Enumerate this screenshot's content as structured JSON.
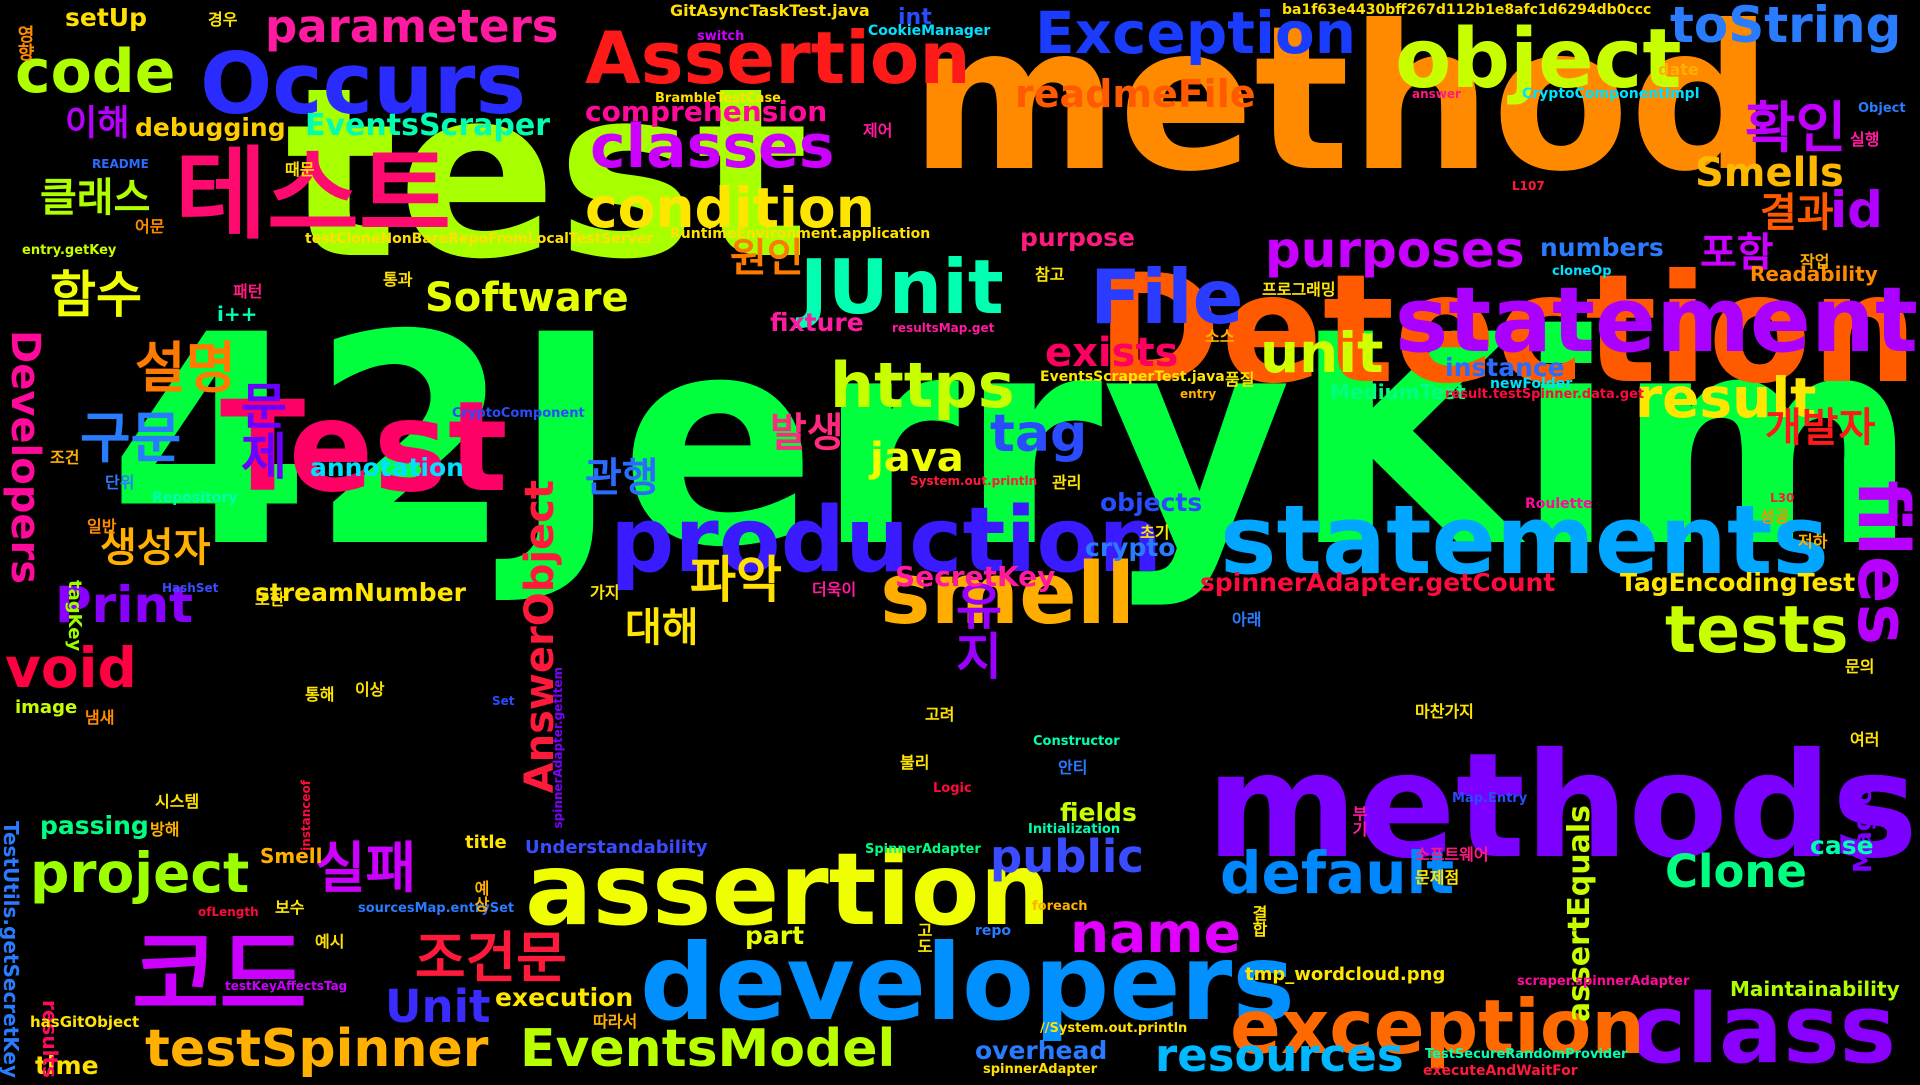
{
  "words": [
    {
      "t": "42JerryKim",
      "c": "#00ff3c"
    },
    {
      "t": "test",
      "c": "#a8ff00"
    },
    {
      "t": "method",
      "c": "#ff8a00"
    },
    {
      "t": "Detection",
      "c": "#ff5a00"
    },
    {
      "t": "methods",
      "c": "#7b00ff"
    },
    {
      "t": "Test",
      "c": "#ff0066"
    },
    {
      "t": "developers",
      "c": "#0090ff"
    },
    {
      "t": "statements",
      "c": "#00a6ff"
    },
    {
      "t": "production",
      "c": "#3a1bff"
    },
    {
      "t": "assertion",
      "c": "#f0ff00"
    },
    {
      "t": "Occurs",
      "c": "#2a2cff"
    },
    {
      "t": "테스트",
      "c": "#ff0a6e"
    },
    {
      "t": "object",
      "c": "#c8ff00"
    },
    {
      "t": "Assertion",
      "c": "#ff1a1a"
    },
    {
      "t": "statement",
      "c": "#a900ff"
    },
    {
      "t": "class",
      "c": "#8a00ff"
    },
    {
      "t": "코드",
      "c": "#cc00ff"
    },
    {
      "t": "exception",
      "c": "#ff6a00"
    },
    {
      "t": "smell",
      "c": "#ffae00"
    },
    {
      "t": "JUnit",
      "c": "#00ffb0"
    },
    {
      "t": "File",
      "c": "#2a3cff"
    },
    {
      "t": "code",
      "c": "#b0ff00"
    },
    {
      "t": "classes",
      "c": "#cc00ff"
    },
    {
      "t": "Exception",
      "c": "#1a3cff"
    },
    {
      "t": "toString",
      "c": "#2a7cff"
    },
    {
      "t": "condition",
      "c": "#ffe600"
    },
    {
      "t": "https",
      "c": "#c8ff00"
    },
    {
      "t": "EventsModel",
      "c": "#b8ff00"
    },
    {
      "t": "testSpinner",
      "c": "#ffb000"
    },
    {
      "t": "project",
      "c": "#9cff00"
    },
    {
      "t": "default",
      "c": "#0088ff"
    },
    {
      "t": "tests",
      "c": "#c8ff00"
    },
    {
      "t": "files",
      "c": "#b800ff"
    },
    {
      "t": "parameters",
      "c": "#ff1aa0"
    },
    {
      "t": "purposes",
      "c": "#c800ff"
    },
    {
      "t": "unit",
      "c": "#d0ff00"
    },
    {
      "t": "result",
      "c": "#ffe600"
    },
    {
      "t": "tag",
      "c": "#2a4cff"
    },
    {
      "t": "name",
      "c": "#e000ff"
    },
    {
      "t": "resources",
      "c": "#00b8ff"
    },
    {
      "t": "Clone",
      "c": "#00ff80"
    },
    {
      "t": "id",
      "c": "#b000ff"
    },
    {
      "t": "확인",
      "c": "#c000ff"
    },
    {
      "t": "Smells",
      "c": "#ffb800"
    },
    {
      "t": "readmeFile",
      "c": "#ff5a00"
    },
    {
      "t": "함수",
      "c": "#f0ff00"
    },
    {
      "t": "설명",
      "c": "#ff7a00"
    },
    {
      "t": "구문",
      "c": "#2a7cff"
    },
    {
      "t": "실패",
      "c": "#cc00ff"
    },
    {
      "t": "조건문",
      "c": "#ff1a3c"
    },
    {
      "t": "파악",
      "c": "#ffe000"
    },
    {
      "t": "void",
      "c": "#ff0040"
    },
    {
      "t": "Print",
      "c": "#8a00ff"
    },
    {
      "t": "Software",
      "c": "#e6ff00"
    },
    {
      "t": "public",
      "c": "#3a4cff"
    },
    {
      "t": "exists",
      "c": "#ff0060"
    },
    {
      "t": "java",
      "c": "#f0ff00"
    },
    {
      "t": "Unit",
      "c": "#3a2cff"
    },
    {
      "t": "생성자",
      "c": "#ffb000"
    },
    {
      "t": "Developers",
      "c": "#ff0a9a"
    },
    {
      "t": "AnswerObject",
      "c": "#ff1a3c"
    },
    {
      "t": "유지",
      "c": "#9a00ff"
    },
    {
      "t": "문제",
      "c": "#6a00ff"
    },
    {
      "t": "클래스",
      "c": "#b0ff00"
    },
    {
      "t": "원인",
      "c": "#ff7a00"
    },
    {
      "t": "포함",
      "c": "#cc00ff"
    },
    {
      "t": "결과",
      "c": "#ff5a00"
    },
    {
      "t": "개발자",
      "c": "#ff1a1a"
    },
    {
      "t": "발생",
      "c": "#ff2a80"
    },
    {
      "t": "관행",
      "c": "#2a6cff"
    },
    {
      "t": "대해",
      "c": "#ffe600"
    },
    {
      "t": "이해",
      "c": "#b800ff"
    },
    {
      "t": "debugging",
      "c": "#ffcc00"
    },
    {
      "t": "EventsScraper",
      "c": "#00ffb0"
    },
    {
      "t": "comprehension",
      "c": "#ff0a9a"
    },
    {
      "t": "setUp",
      "c": "#ffe000"
    },
    {
      "t": "annotation",
      "c": "#00e0ff"
    },
    {
      "t": "streamNumber",
      "c": "#ffe600"
    },
    {
      "t": "SecretKey",
      "c": "#ff1aa0"
    },
    {
      "t": "crypto",
      "c": "#2a7cff"
    },
    {
      "t": "objects",
      "c": "#2a4cff"
    },
    {
      "t": "spinnerAdapter.getCount",
      "c": "#ff0a3c"
    },
    {
      "t": "assertEquals",
      "c": "#c8ff00"
    },
    {
      "t": "TagEncodingTest",
      "c": "#ffe600"
    },
    {
      "t": "fixture",
      "c": "#ff1aa0"
    },
    {
      "t": "instance",
      "c": "#2a6cff"
    },
    {
      "t": "MediumTest",
      "c": "#00ff80"
    },
    {
      "t": "numbers",
      "c": "#2a7cff"
    },
    {
      "t": "purpose",
      "c": "#ff1a80"
    },
    {
      "t": "Readability",
      "c": "#ff8a00"
    },
    {
      "t": "fields",
      "c": "#c8ff00"
    },
    {
      "t": "overhead",
      "c": "#2a7cff"
    },
    {
      "t": "execution",
      "c": "#ffe600"
    },
    {
      "t": "part",
      "c": "#e6ff00"
    },
    {
      "t": "passing",
      "c": "#00ff80"
    },
    {
      "t": "Magic",
      "c": "#7b00ff"
    },
    {
      "t": "case",
      "c": "#00ffb0"
    },
    {
      "t": "Maintainability",
      "c": "#b0ff00"
    },
    {
      "t": "Understandability",
      "c": "#3a4cff"
    },
    {
      "t": "Smell",
      "c": "#ffb000"
    },
    {
      "t": "time",
      "c": "#ffe000"
    },
    {
      "t": "image",
      "c": "#c8ff00"
    },
    {
      "t": "title",
      "c": "#ffe600"
    },
    {
      "t": "results",
      "c": "#ff0a60"
    },
    {
      "t": "TestUtils.getSecretKey",
      "c": "#2a7cff"
    },
    {
      "t": "tagKey",
      "c": "#9cff00"
    },
    {
      "t": "hasGitObject",
      "c": "#ffe600"
    },
    {
      "t": "tmp_wordcloud.png",
      "c": "#ffe600"
    },
    {
      "t": "int",
      "c": "#2a4cff"
    },
    {
      "t": "i++",
      "c": "#00ffb0"
    },
    {
      "t": "GitAsyncTaskTest.java",
      "c": "#ffe000"
    },
    {
      "t": "CookieManager",
      "c": "#00e0ff"
    },
    {
      "t": "ba1f63e4430bff267d112b1e8afc1d6294db0ccc",
      "c": "#ffe000"
    },
    {
      "t": "switch",
      "c": "#cc00ff"
    },
    {
      "t": "BrambleTestCase",
      "c": "#ffe000"
    },
    {
      "t": "README",
      "c": "#2a6cff"
    },
    {
      "t": "RuntimeEnvironment.application",
      "c": "#ffe000"
    },
    {
      "t": "testCloneNonBareRepoFromLocalTestServer",
      "c": "#ffe000"
    },
    {
      "t": "entry.getKey",
      "c": "#c8ff00"
    },
    {
      "t": "resultsMap.get",
      "c": "#ff1aa0"
    },
    {
      "t": "EventsScraperTest.java",
      "c": "#ffe600"
    },
    {
      "t": "CryptoComponent",
      "c": "#2a4cff"
    },
    {
      "t": "CryptoComponentImpl",
      "c": "#00e0ff"
    },
    {
      "t": "answer",
      "c": "#ff1a80"
    },
    {
      "t": "date",
      "c": "#ffb000"
    },
    {
      "t": "Object",
      "c": "#2a7cff"
    },
    {
      "t": "result.testSpinner.data.get",
      "c": "#ff0a3c"
    },
    {
      "t": "cloneOp",
      "c": "#00e0ff"
    },
    {
      "t": "newFolder",
      "c": "#00e0ff"
    },
    {
      "t": "entry",
      "c": "#ffb000"
    },
    {
      "t": "Repository",
      "c": "#00ffb0"
    },
    {
      "t": "System.out.println",
      "c": "#ff1a3c"
    },
    {
      "t": "Roulette",
      "c": "#ff0a9a"
    },
    {
      "t": "HashSet",
      "c": "#3a4cff"
    },
    {
      "t": "Set",
      "c": "#2a4cff"
    },
    {
      "t": "spinnerAdapter.getItem",
      "c": "#7b00ff"
    },
    {
      "t": "Constructor",
      "c": "#00ffb0"
    },
    {
      "t": "Logic",
      "c": "#ff0a3c"
    },
    {
      "t": "Initialization",
      "c": "#00ffb0"
    },
    {
      "t": "SpinnerAdapter",
      "c": "#00ff80"
    },
    {
      "t": "sourcesMap.entrySet",
      "c": "#2a7cff"
    },
    {
      "t": "ofLength",
      "c": "#ff0a3c"
    },
    {
      "t": "foreach",
      "c": "#ffb000"
    },
    {
      "t": "repo",
      "c": "#2a7cff"
    },
    {
      "t": "testKeyAffectsTag",
      "c": "#cc00ff"
    },
    {
      "t": "//System.out.println",
      "c": "#ffe000"
    },
    {
      "t": "spinnerAdapter",
      "c": "#ffe000"
    },
    {
      "t": "scraper.spinnerAdapter",
      "c": "#ff0a9a"
    },
    {
      "t": "TestSecureRandomProvider",
      "c": "#00ffb0"
    },
    {
      "t": "executeAndWaitFor",
      "c": "#ff1a3c"
    },
    {
      "t": "Map.Entry",
      "c": "#2a4cff"
    },
    {
      "t": "L107",
      "c": "#ff1a3c"
    },
    {
      "t": "L30",
      "c": "#ff1a3c"
    },
    {
      "t": "instanceof",
      "c": "#ff0a3c"
    },
    {
      "t": "영향",
      "c": "#ff8a00"
    },
    {
      "t": "경우",
      "c": "#ffe600"
    },
    {
      "t": "때문",
      "c": "#ffe000"
    },
    {
      "t": "어문",
      "c": "#ff8a00"
    },
    {
      "t": "제어",
      "c": "#ff1aa0"
    },
    {
      "t": "패턴",
      "c": "#ff1a80"
    },
    {
      "t": "통과",
      "c": "#ffe000"
    },
    {
      "t": "참고",
      "c": "#ffe600"
    },
    {
      "t": "작업",
      "c": "#ffb000"
    },
    {
      "t": "실행",
      "c": "#ff1aa0"
    },
    {
      "t": "프로그래밍",
      "c": "#ffe600"
    },
    {
      "t": "소스",
      "c": "#ffb000"
    },
    {
      "t": "품질",
      "c": "#ffe600"
    },
    {
      "t": "조건",
      "c": "#ffb000"
    },
    {
      "t": "단위",
      "c": "#2a7cff"
    },
    {
      "t": "관리",
      "c": "#ffe600"
    },
    {
      "t": "일반",
      "c": "#ff8a00"
    },
    {
      "t": "초기",
      "c": "#ffe600"
    },
    {
      "t": "성공",
      "c": "#ff8a00"
    },
    {
      "t": "저하",
      "c": "#ffb000"
    },
    {
      "t": "또한",
      "c": "#ffe000"
    },
    {
      "t": "가지",
      "c": "#ffe600"
    },
    {
      "t": "더욱이",
      "c": "#ff1aa0"
    },
    {
      "t": "아래",
      "c": "#2a7cff"
    },
    {
      "t": "통해",
      "c": "#ffe600"
    },
    {
      "t": "이상",
      "c": "#ffe000"
    },
    {
      "t": "냄새",
      "c": "#ff8a00"
    },
    {
      "t": "문의",
      "c": "#ffe600"
    },
    {
      "t": "고려",
      "c": "#ffe000"
    },
    {
      "t": "마찬가지",
      "c": "#ffe600"
    },
    {
      "t": "여러",
      "c": "#ffe000"
    },
    {
      "t": "불리",
      "c": "#ffe600"
    },
    {
      "t": "안티",
      "c": "#2a7cff"
    },
    {
      "t": "시스템",
      "c": "#ffe000"
    },
    {
      "t": "방해",
      "c": "#ffb000"
    },
    {
      "t": "예상",
      "c": "#ffb000"
    },
    {
      "t": "부기",
      "c": "#ff1aa0"
    },
    {
      "t": "소프트웨어",
      "c": "#ff1a80"
    },
    {
      "t": "문제점",
      "c": "#ffe600"
    },
    {
      "t": "보수",
      "c": "#ffe600"
    },
    {
      "t": "예시",
      "c": "#ffe000"
    },
    {
      "t": "결합",
      "c": "#ffe600"
    },
    {
      "t": "따라서",
      "c": "#ffb000"
    },
    {
      "t": "고도",
      "c": "#ffe600"
    }
  ]
}
